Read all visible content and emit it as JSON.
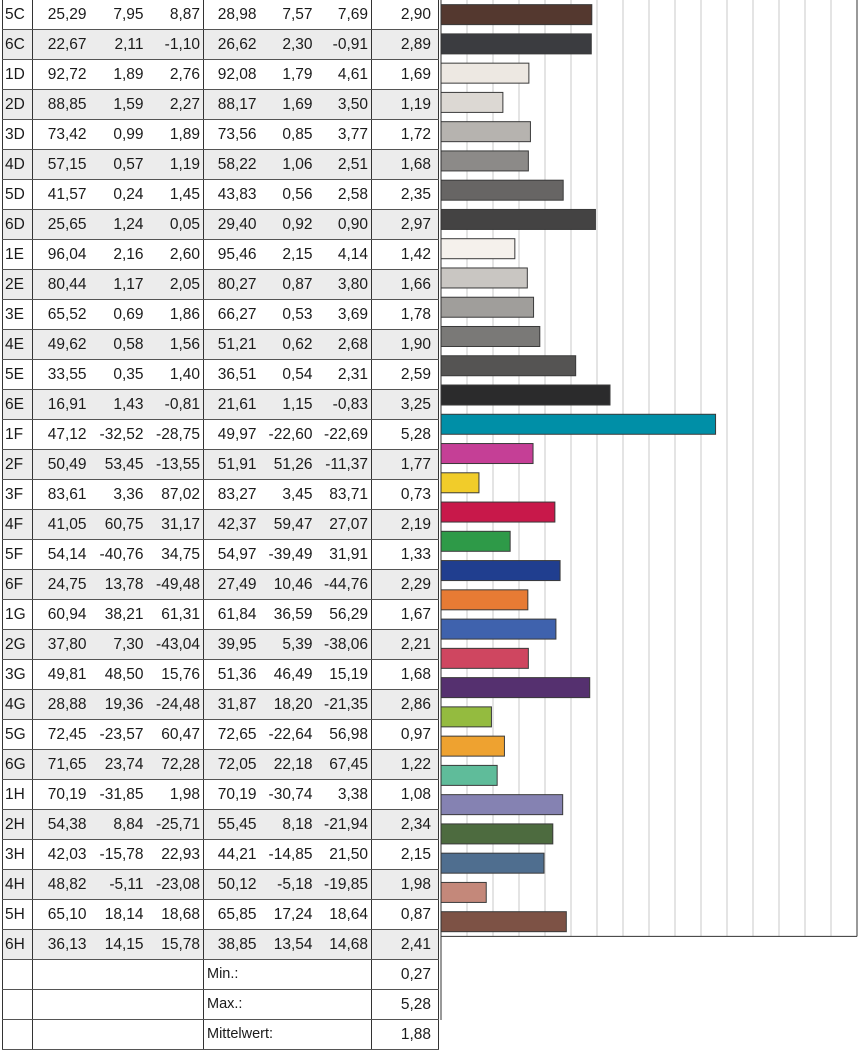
{
  "chart_data": {
    "type": "bar",
    "orientation": "horizontal",
    "grid": true,
    "xlim": [
      0,
      8
    ],
    "grid_step": 0.5,
    "columns": [
      "",
      "",
      "",
      "",
      "",
      "",
      "",
      ""
    ],
    "rows": [
      {
        "id": "5C",
        "v1": "25,29",
        "v2": "7,95",
        "v3": "8,87",
        "v4": "28,98",
        "v5": "7,57",
        "v6": "7,69",
        "de": "2,90",
        "value": 2.9,
        "color": "#54382f"
      },
      {
        "id": "6C",
        "v1": "22,67",
        "v2": "2,11",
        "v3": "-1,10",
        "v4": "26,62",
        "v5": "2,30",
        "v6": "-0,91",
        "de": "2,89",
        "value": 2.89,
        "color": "#3b3c40"
      },
      {
        "id": "1D",
        "v1": "92,72",
        "v2": "1,89",
        "v3": "2,76",
        "v4": "92,08",
        "v5": "1,79",
        "v6": "4,61",
        "de": "1,69",
        "value": 1.69,
        "color": "#ede8e2"
      },
      {
        "id": "2D",
        "v1": "88,85",
        "v2": "1,59",
        "v3": "2,27",
        "v4": "88,17",
        "v5": "1,69",
        "v6": "3,50",
        "de": "1,19",
        "value": 1.19,
        "color": "#dcd8d3"
      },
      {
        "id": "3D",
        "v1": "73,42",
        "v2": "0,99",
        "v3": "1,89",
        "v4": "73,56",
        "v5": "0,85",
        "v6": "3,77",
        "de": "1,72",
        "value": 1.72,
        "color": "#b6b3af"
      },
      {
        "id": "4D",
        "v1": "57,15",
        "v2": "0,57",
        "v3": "1,19",
        "v4": "58,22",
        "v5": "1,06",
        "v6": "2,51",
        "de": "1,68",
        "value": 1.68,
        "color": "#8c8a88"
      },
      {
        "id": "5D",
        "v1": "41,57",
        "v2": "0,24",
        "v3": "1,45",
        "v4": "43,83",
        "v5": "0,56",
        "v6": "2,58",
        "de": "2,35",
        "value": 2.35,
        "color": "#676564"
      },
      {
        "id": "6D",
        "v1": "25,65",
        "v2": "1,24",
        "v3": "0,05",
        "v4": "29,40",
        "v5": "0,92",
        "v6": "0,90",
        "de": "2,97",
        "value": 2.97,
        "color": "#444343"
      },
      {
        "id": "1E",
        "v1": "96,04",
        "v2": "2,16",
        "v3": "2,60",
        "v4": "95,46",
        "v5": "2,15",
        "v6": "4,14",
        "de": "1,42",
        "value": 1.42,
        "color": "#f5f1ec"
      },
      {
        "id": "2E",
        "v1": "80,44",
        "v2": "1,17",
        "v3": "2,05",
        "v4": "80,27",
        "v5": "0,87",
        "v6": "3,80",
        "de": "1,66",
        "value": 1.66,
        "color": "#c9c6c2"
      },
      {
        "id": "3E",
        "v1": "65,52",
        "v2": "0,69",
        "v3": "1,86",
        "v4": "66,27",
        "v5": "0,53",
        "v6": "3,69",
        "de": "1,78",
        "value": 1.78,
        "color": "#a09e9b"
      },
      {
        "id": "4E",
        "v1": "49,62",
        "v2": "0,58",
        "v3": "1,56",
        "v4": "51,21",
        "v5": "0,62",
        "v6": "2,68",
        "de": "1,90",
        "value": 1.9,
        "color": "#7a7977"
      },
      {
        "id": "5E",
        "v1": "33,55",
        "v2": "0,35",
        "v3": "1,40",
        "v4": "36,51",
        "v5": "0,54",
        "v6": "2,31",
        "de": "2,59",
        "value": 2.59,
        "color": "#555453"
      },
      {
        "id": "6E",
        "v1": "16,91",
        "v2": "1,43",
        "v3": "-0,81",
        "v4": "21,61",
        "v5": "1,15",
        "v6": "-0,83",
        "de": "3,25",
        "value": 3.25,
        "color": "#2b2b2c"
      },
      {
        "id": "1F",
        "v1": "47,12",
        "v2": "-32,52",
        "v3": "-28,75",
        "v4": "49,97",
        "v5": "-22,60",
        "v6": "-22,69",
        "de": "5,28",
        "value": 5.28,
        "color": "#008fa7"
      },
      {
        "id": "2F",
        "v1": "50,49",
        "v2": "53,45",
        "v3": "-13,55",
        "v4": "51,91",
        "v5": "51,26",
        "v6": "-11,37",
        "de": "1,77",
        "value": 1.77,
        "color": "#c53f96"
      },
      {
        "id": "3F",
        "v1": "83,61",
        "v2": "3,36",
        "v3": "87,02",
        "v4": "83,27",
        "v5": "3,45",
        "v6": "83,71",
        "de": "0,73",
        "value": 0.73,
        "color": "#f1cc2a"
      },
      {
        "id": "4F",
        "v1": "41,05",
        "v2": "60,75",
        "v3": "31,17",
        "v4": "42,37",
        "v5": "59,47",
        "v6": "27,07",
        "de": "2,19",
        "value": 2.19,
        "color": "#c8184a"
      },
      {
        "id": "5F",
        "v1": "54,14",
        "v2": "-40,76",
        "v3": "34,75",
        "v4": "54,97",
        "v5": "-39,49",
        "v6": "31,91",
        "de": "1,33",
        "value": 1.33,
        "color": "#2e9a48"
      },
      {
        "id": "6F",
        "v1": "24,75",
        "v2": "13,78",
        "v3": "-49,48",
        "v4": "27,49",
        "v5": "10,46",
        "v6": "-44,76",
        "de": "2,29",
        "value": 2.29,
        "color": "#203e8f"
      },
      {
        "id": "1G",
        "v1": "60,94",
        "v2": "38,21",
        "v3": "61,31",
        "v4": "61,84",
        "v5": "36,59",
        "v6": "56,29",
        "de": "1,67",
        "value": 1.67,
        "color": "#e77b34"
      },
      {
        "id": "2G",
        "v1": "37,80",
        "v2": "7,30",
        "v3": "-43,04",
        "v4": "39,95",
        "v5": "5,39",
        "v6": "-38,06",
        "de": "2,21",
        "value": 2.21,
        "color": "#3f62ad"
      },
      {
        "id": "3G",
        "v1": "49,81",
        "v2": "48,50",
        "v3": "15,76",
        "v4": "51,36",
        "v5": "46,49",
        "v6": "15,19",
        "de": "1,68",
        "value": 1.68,
        "color": "#cf4660"
      },
      {
        "id": "4G",
        "v1": "28,88",
        "v2": "19,36",
        "v3": "-24,48",
        "v4": "31,87",
        "v5": "18,20",
        "v6": "-21,35",
        "de": "2,86",
        "value": 2.86,
        "color": "#55306f"
      },
      {
        "id": "5G",
        "v1": "72,45",
        "v2": "-23,57",
        "v3": "60,47",
        "v4": "72,65",
        "v5": "-22,64",
        "v6": "56,98",
        "de": "0,97",
        "value": 0.97,
        "color": "#94bb3f"
      },
      {
        "id": "6G",
        "v1": "71,65",
        "v2": "23,74",
        "v3": "72,28",
        "v4": "72,05",
        "v5": "22,18",
        "v6": "67,45",
        "de": "1,22",
        "value": 1.22,
        "color": "#eea230"
      },
      {
        "id": "1H",
        "v1": "70,19",
        "v2": "-31,85",
        "v3": "1,98",
        "v4": "70,19",
        "v5": "-30,74",
        "v6": "3,38",
        "de": "1,08",
        "value": 1.08,
        "color": "#5fbc9a"
      },
      {
        "id": "2H",
        "v1": "54,38",
        "v2": "8,84",
        "v3": "-25,71",
        "v4": "55,45",
        "v5": "8,18",
        "v6": "-21,94",
        "de": "2,34",
        "value": 2.34,
        "color": "#8582b2"
      },
      {
        "id": "3H",
        "v1": "42,03",
        "v2": "-15,78",
        "v3": "22,93",
        "v4": "44,21",
        "v5": "-14,85",
        "v6": "21,50",
        "de": "2,15",
        "value": 2.15,
        "color": "#4d6b3f"
      },
      {
        "id": "4H",
        "v1": "48,82",
        "v2": "-5,11",
        "v3": "-23,08",
        "v4": "50,12",
        "v5": "-5,18",
        "v6": "-19,85",
        "de": "1,98",
        "value": 1.98,
        "color": "#4f6e8f"
      },
      {
        "id": "5H",
        "v1": "65,10",
        "v2": "18,14",
        "v3": "18,68",
        "v4": "65,85",
        "v5": "17,24",
        "v6": "18,64",
        "de": "0,87",
        "value": 0.87,
        "color": "#c4887a"
      },
      {
        "id": "6H",
        "v1": "36,13",
        "v2": "14,15",
        "v3": "15,78",
        "v4": "38,85",
        "v5": "13,54",
        "v6": "14,68",
        "de": "2,41",
        "value": 2.41,
        "color": "#7d5245"
      }
    ],
    "summary": [
      {
        "label": "Min.:",
        "value": "0,27"
      },
      {
        "label": "Max.:",
        "value": "5,28"
      },
      {
        "label": "Mittelwert:",
        "value": "1,88"
      }
    ]
  }
}
